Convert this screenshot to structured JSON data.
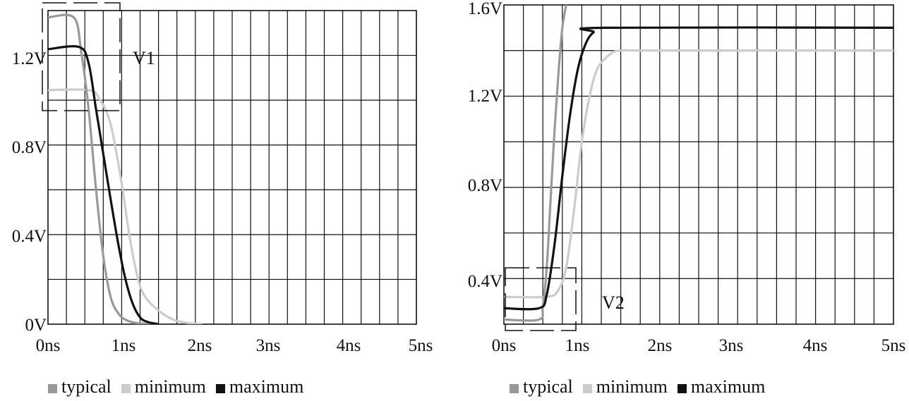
{
  "chart_data": [
    {
      "type": "line",
      "x_ticks": [
        "0ns",
        "1ns",
        "2ns",
        "3ns",
        "4ns",
        "5ns"
      ],
      "y_ticks": [
        "0V",
        "0.4V",
        "0.8V",
        "1.2V"
      ],
      "xlim": [
        0,
        5
      ],
      "ylim": [
        0,
        1.38
      ],
      "grid": true,
      "legend_position": "bottom",
      "annotation": "V1",
      "series": [
        {
          "name": "typical",
          "color": "#999999",
          "x": [
            0,
            0.35,
            0.45,
            0.55,
            0.65,
            0.75,
            0.85,
            0.95,
            1.05,
            1.2,
            1.4
          ],
          "y": [
            1.35,
            1.35,
            1.2,
            0.95,
            0.6,
            0.3,
            0.12,
            0.05,
            0.02,
            0.005,
            0
          ]
        },
        {
          "name": "minimum",
          "color": "#cccccc",
          "x": [
            0,
            0.55,
            0.7,
            0.85,
            1.0,
            1.1,
            1.2,
            1.3,
            1.5,
            1.7,
            1.9,
            2.1
          ],
          "y": [
            1.03,
            1.03,
            0.99,
            0.88,
            0.62,
            0.4,
            0.23,
            0.13,
            0.06,
            0.02,
            0.005,
            0
          ]
        },
        {
          "name": "maximum",
          "color": "#111111",
          "x": [
            0,
            0.42,
            0.55,
            0.65,
            0.75,
            0.85,
            0.95,
            1.05,
            1.15,
            1.25,
            1.35,
            1.5
          ],
          "y": [
            1.21,
            1.22,
            1.15,
            0.95,
            0.75,
            0.55,
            0.36,
            0.2,
            0.09,
            0.03,
            0.01,
            0
          ]
        }
      ]
    },
    {
      "type": "line",
      "x_ticks": [
        "0ns",
        "1ns",
        "2ns",
        "3ns",
        "4ns",
        "5ns"
      ],
      "y_ticks": [
        "0.4V",
        "0.8V",
        "1.2V",
        "1.6V"
      ],
      "xlim": [
        0,
        5
      ],
      "ylim": [
        0.2,
        1.6
      ],
      "grid": true,
      "legend_position": "bottom",
      "annotation": "V2",
      "series": [
        {
          "name": "typical",
          "color": "#999999",
          "x": [
            0,
            0.45,
            0.5,
            0.55,
            0.6,
            0.65,
            0.7,
            0.75,
            0.8,
            0.85
          ],
          "y": [
            0.22,
            0.22,
            0.28,
            0.45,
            0.75,
            1.05,
            1.3,
            1.5,
            1.6,
            1.65
          ]
        },
        {
          "name": "minimum",
          "color": "#cccccc",
          "x": [
            0,
            0.55,
            0.7,
            0.8,
            0.9,
            1.0,
            1.1,
            1.2,
            1.35,
            1.5,
            2.0,
            5.0
          ],
          "y": [
            0.32,
            0.32,
            0.35,
            0.45,
            0.7,
            1.0,
            1.2,
            1.32,
            1.38,
            1.4,
            1.4,
            1.4
          ]
        },
        {
          "name": "maximum",
          "color": "#111111",
          "x": [
            0,
            0.45,
            0.55,
            0.65,
            0.75,
            0.85,
            0.95,
            1.05,
            1.15,
            1.3,
            5.0
          ],
          "y": [
            0.27,
            0.27,
            0.33,
            0.55,
            0.85,
            1.12,
            1.32,
            1.43,
            1.48,
            1.5,
            1.5
          ]
        }
      ]
    }
  ]
}
